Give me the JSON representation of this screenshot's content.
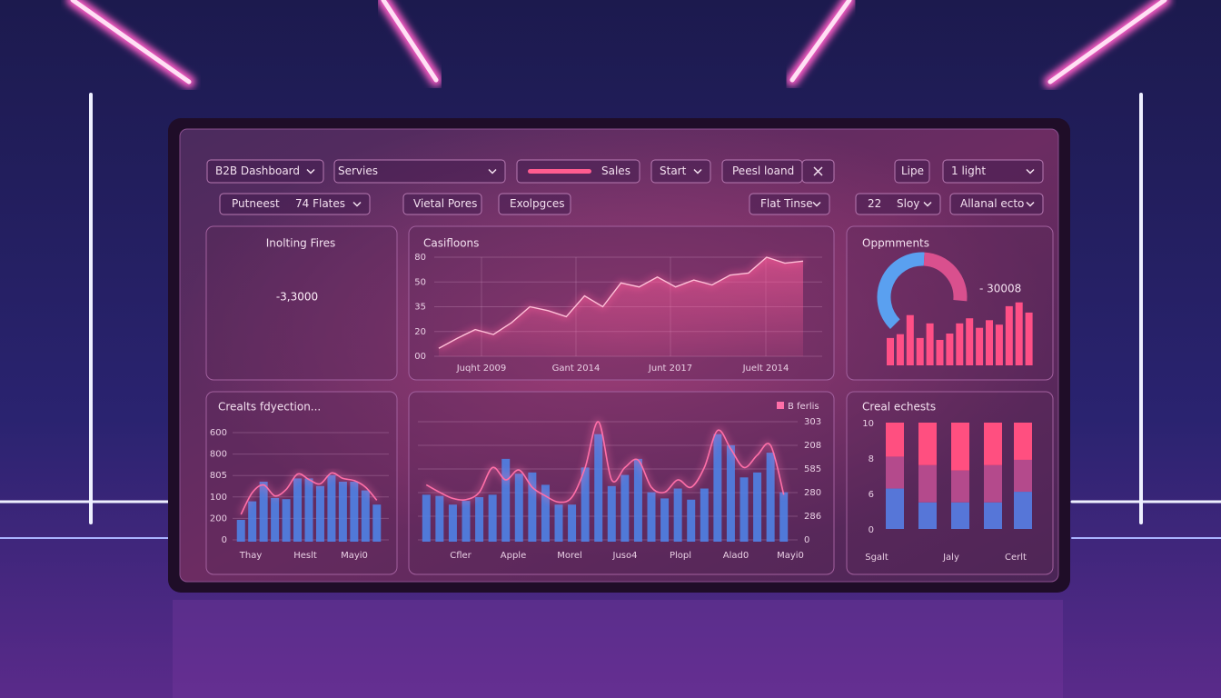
{
  "toolbar": [
    [
      "B2B Dashboard"
    ],
    [
      "Servies"
    ],
    [
      "Sales"
    ],
    [
      "Start"
    ],
    [
      "Peesl loand"
    ],
    [
      "Lipe"
    ],
    [
      "1 light"
    ],
    [
      "Putneest",
      "74 Flates"
    ],
    [
      "Vietal Pores"
    ],
    [
      "Exolpgces"
    ],
    [
      "Flat Tinse"
    ],
    [
      "22",
      "Sloy"
    ],
    [
      "Allanal ecto"
    ]
  ],
  "panels": [
    {
      "kind": "kpi",
      "title": "Inolting Fires",
      "value_text": "-3,3000"
    },
    {
      "kind": "area",
      "title": "Casifloons",
      "color": "#ff5c9a",
      "tick_labels": [
        "80",
        "50",
        "35",
        "20",
        "00"
      ],
      "x_labels": [
        "Juqht 2009",
        "Gant 2014",
        "Junt 2017",
        "Juelt 2014"
      ],
      "ylim": [
        0,
        100
      ],
      "values": [
        8,
        18,
        27,
        22,
        34,
        50,
        46,
        40,
        61,
        50,
        74,
        70,
        80,
        70,
        77,
        72,
        82,
        84,
        100,
        94,
        96
      ]
    },
    {
      "kind": "donut-bars",
      "title": "Oppmments",
      "value_text": "- 30008",
      "ring": [
        {
          "color": "#5aa0f0",
          "value": 60
        },
        {
          "color": "#d9508e",
          "value": 40
        }
      ],
      "color": "#ff4f86",
      "ylim": [
        0,
        100
      ],
      "values": [
        43,
        49,
        79,
        43,
        66,
        40,
        50,
        66,
        74,
        59,
        71,
        64,
        93,
        99,
        83
      ]
    },
    {
      "kind": "bars-line",
      "title": "Crealts fdyection...",
      "tick_labels": [
        "600",
        "800",
        "805",
        "100",
        "200",
        "0"
      ],
      "x_labels": [
        "Thay",
        "Heslt",
        "Mayi0"
      ],
      "ylim": [
        0,
        100
      ],
      "bars": {
        "color": "#4f82e6",
        "values": [
          20,
          37,
          55,
          40,
          39,
          58,
          58,
          51,
          61,
          55,
          55,
          47,
          34
        ]
      },
      "line": {
        "color": "#ff6fa8",
        "values": [
          25,
          45,
          52,
          42,
          48,
          62,
          57,
          53,
          63,
          58,
          56,
          50,
          38
        ]
      }
    },
    {
      "kind": "bars-line-right",
      "legend": "B ferlis",
      "tick_labels": [
        "303",
        "208",
        "585",
        "280",
        "286",
        "0"
      ],
      "x_labels": [
        "Cfler",
        "Apple",
        "Morel",
        "Juso4",
        "Plopl",
        "Alad0",
        "Mayi0"
      ],
      "ylim": [
        0,
        100
      ],
      "bars": {
        "color": "#4f82e6",
        "values": [
          38,
          37,
          30,
          33,
          36,
          38,
          67,
          55,
          56,
          46,
          30,
          30,
          60,
          87,
          45,
          54,
          67,
          40,
          35,
          43,
          34,
          43,
          87,
          78,
          52,
          56,
          72,
          40
        ]
      },
      "line": {
        "color": "#ff6fa8",
        "values": [
          46,
          40,
          35,
          34,
          40,
          60,
          50,
          58,
          44,
          37,
          32,
          36,
          60,
          97,
          50,
          60,
          66,
          44,
          40,
          50,
          44,
          60,
          90,
          75,
          60,
          70,
          78,
          38
        ]
      }
    },
    {
      "kind": "stacked",
      "title": "Creal echests",
      "tick_labels": [
        "10",
        "8",
        "6",
        "0"
      ],
      "x_labels": [
        "Sgalt",
        "Jaly",
        "Cerlt"
      ],
      "ylim": [
        0,
        100
      ],
      "series": [
        {
          "color": "#5676d8",
          "values": [
            38,
            25,
            25,
            25,
            35
          ]
        },
        {
          "color": "#b44a8c",
          "values": [
            30,
            35,
            30,
            35,
            30
          ]
        },
        {
          "color": "#ff4f80",
          "values": [
            32,
            40,
            45,
            40,
            35
          ]
        }
      ]
    }
  ]
}
